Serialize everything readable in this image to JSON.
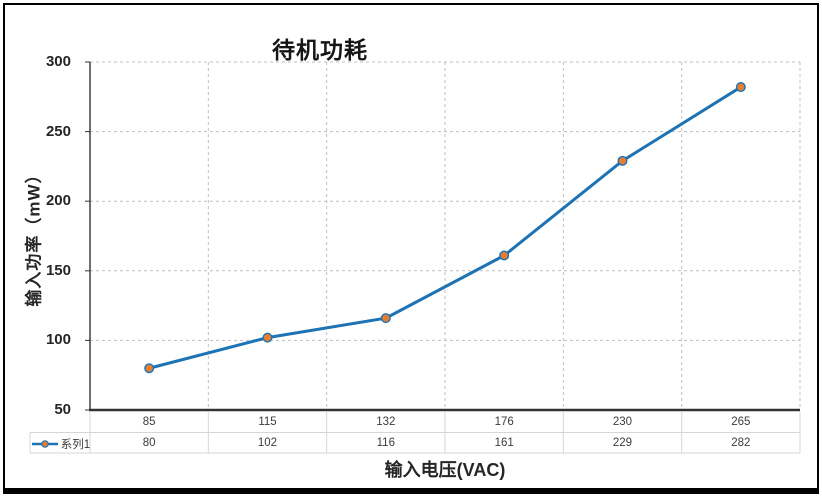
{
  "chart_data": {
    "type": "line",
    "title": "待机功耗",
    "xlabel": "输入电压(VAC)",
    "ylabel": "输入功率（mW）",
    "categories": [
      "85",
      "115",
      "132",
      "176",
      "230",
      "265"
    ],
    "series": [
      {
        "name": "系列1",
        "values": [
          80,
          102,
          116,
          161,
          229,
          282
        ]
      }
    ],
    "ylim": [
      50,
      300
    ],
    "yticks": [
      300,
      250,
      200,
      150,
      100,
      50
    ],
    "grid": "dashed",
    "data_table_shown": true,
    "legend_position": "data-table-left",
    "colors": {
      "line": "#1E73B4",
      "marker_fill": "#E67E31",
      "gridline": "#BFBFBF",
      "axis": "#333333",
      "table_border": "#D6D6D6",
      "frame_border": "#000000"
    }
  }
}
